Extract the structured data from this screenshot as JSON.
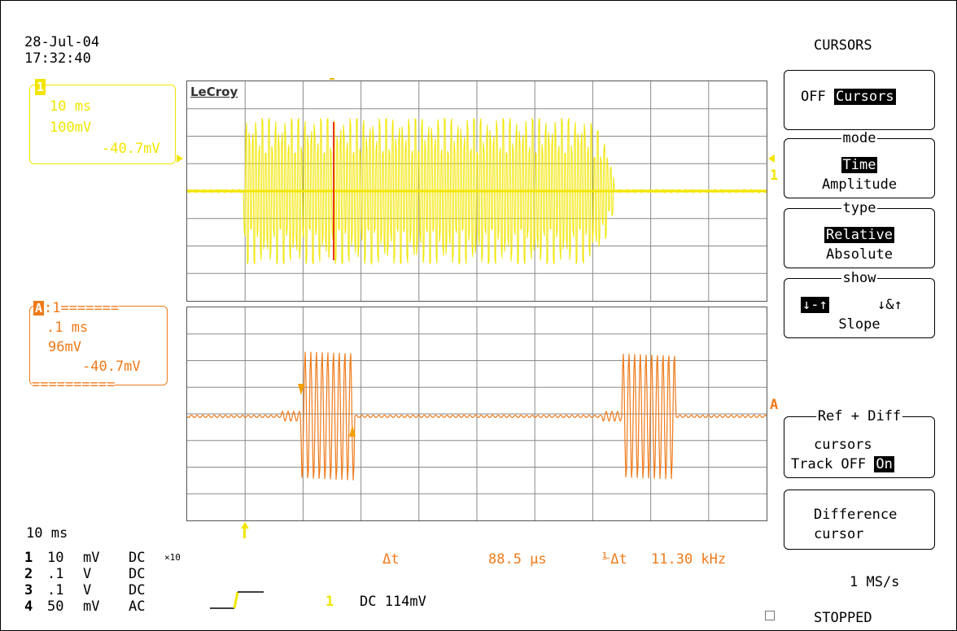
{
  "header": {
    "date": "28-Jul-04",
    "time": "17:32:40"
  },
  "logo": "LeCroy",
  "channel1_box": {
    "marker": "1",
    "timebase": "10 ms",
    "volts": "100mV",
    "offset": "-40.7mV"
  },
  "math_box": {
    "marker": "A",
    "label_suffix": ":1=======",
    "bottom_rule": "==========",
    "timebase": ".1 ms",
    "volts": "96mV",
    "offset": "-40.7mV"
  },
  "traces": {
    "trace1_marker": "1",
    "traceA_marker": "A",
    "colors": {
      "ch1": "#f2e600",
      "math": "#ef7a1a",
      "cursor_red": "#e83a1a",
      "grid": "#8a8a8a"
    }
  },
  "menu": {
    "title": "CURSORS",
    "off_label": "OFF",
    "cursors_label": "Cursors",
    "mode": {
      "title": "mode",
      "selected": "Time",
      "other": "Amplitude"
    },
    "type": {
      "title": "type",
      "selected": "Relative",
      "other": "Absolute"
    },
    "show": {
      "title": "show",
      "selected_glyph": "↓-↑",
      "other_glyph": "↓&↑",
      "label": "Slope"
    },
    "ref_diff": {
      "title": "Ref + Diff",
      "line1": "cursors",
      "track_off": "Track OFF",
      "track_on": "On"
    },
    "difference": {
      "line1": "Difference",
      "line2": "cursor"
    }
  },
  "readout": {
    "delta_t_label": "Δt",
    "delta_t_value": "88.5 μs",
    "inv_label": "⅟Δt",
    "freq_value": "11.30 kHz"
  },
  "status": {
    "timebase": "10 ms",
    "sample_rate": "1 MS/s",
    "state": "STOPPED"
  },
  "channels": [
    {
      "num": "1",
      "volts": "10",
      "unit": "mV",
      "coupling": "DC",
      "probe": "×10"
    },
    {
      "num": "2",
      "volts": ".1",
      "unit": "V",
      "coupling": "DC",
      "probe": ""
    },
    {
      "num": "3",
      "volts": ".1",
      "unit": "V",
      "coupling": "DC",
      "probe": ""
    },
    {
      "num": "4",
      "volts": "50",
      "unit": "mV",
      "coupling": "AC",
      "probe": ""
    }
  ],
  "trigger": {
    "source": "1",
    "coupling_level": "DC 114mV"
  }
}
